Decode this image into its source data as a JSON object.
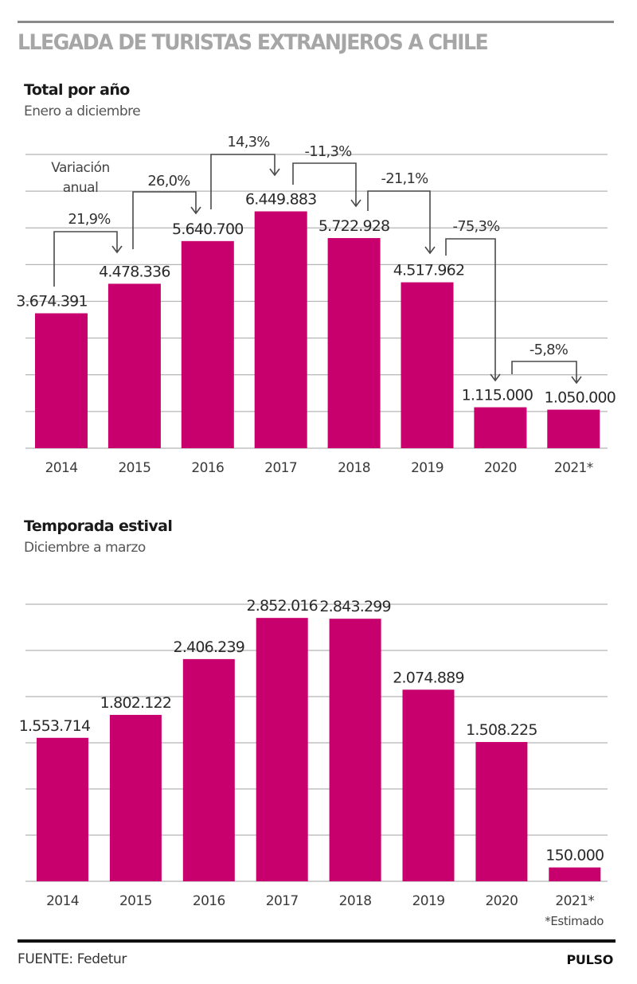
{
  "header": {
    "title": "LLEGADA DE TURISTAS EXTRANJEROS A CHILE"
  },
  "chart_data": [
    {
      "type": "bar",
      "title": "Total por año",
      "subtitle": "Enero a diciembre",
      "categories": [
        "2014",
        "2015",
        "2016",
        "2017",
        "2018",
        "2019",
        "2020",
        "2021*"
      ],
      "values": [
        3674391,
        4478336,
        5640700,
        6449883,
        5722928,
        4517962,
        1115000,
        1050000
      ],
      "value_labels": [
        "3.674.391",
        "4.478.336",
        "5.640.700",
        "6.449.883",
        "5.722.928",
        "4.517.962",
        "1.115.000",
        "1.050.000"
      ],
      "ylim": [
        0,
        8000000
      ],
      "ytick_step": 1000000,
      "grid": true,
      "xlabel": "",
      "ylabel": "",
      "color": "#c8006e",
      "annotation_label": "Variación anual",
      "annotations": [
        {
          "from": "2014",
          "to": "2015",
          "label": "21,9%"
        },
        {
          "from": "2015",
          "to": "2016",
          "label": "26,0%"
        },
        {
          "from": "2016",
          "to": "2017",
          "label": "14,3%"
        },
        {
          "from": "2017",
          "to": "2018",
          "label": "-11,3%"
        },
        {
          "from": "2018",
          "to": "2019",
          "label": "-21,1%"
        },
        {
          "from": "2019",
          "to": "2020",
          "label": "-75,3%"
        },
        {
          "from": "2020",
          "to": "2021*",
          "label": "-5,8%"
        }
      ]
    },
    {
      "type": "bar",
      "title": "Temporada estival",
      "subtitle": "Diciembre a marzo",
      "categories": [
        "2014",
        "2015",
        "2016",
        "2017",
        "2018",
        "2019",
        "2020",
        "2021*"
      ],
      "values": [
        1553714,
        1802122,
        2406239,
        2852016,
        2843299,
        2074889,
        1508225,
        150000
      ],
      "value_labels": [
        "1.553.714",
        "1.802.122",
        "2.406.239",
        "2.852.016",
        "2.843.299",
        "2.074.889",
        "1.508.225",
        "150.000"
      ],
      "ylim": [
        0,
        3000000
      ],
      "ytick_step": 500000,
      "grid": true,
      "xlabel": "",
      "ylabel": "",
      "color": "#c8006e"
    }
  ],
  "footer": {
    "footnote": "*Estimado",
    "source": "FUENTE: Fedetur",
    "brand": "PULSO"
  }
}
